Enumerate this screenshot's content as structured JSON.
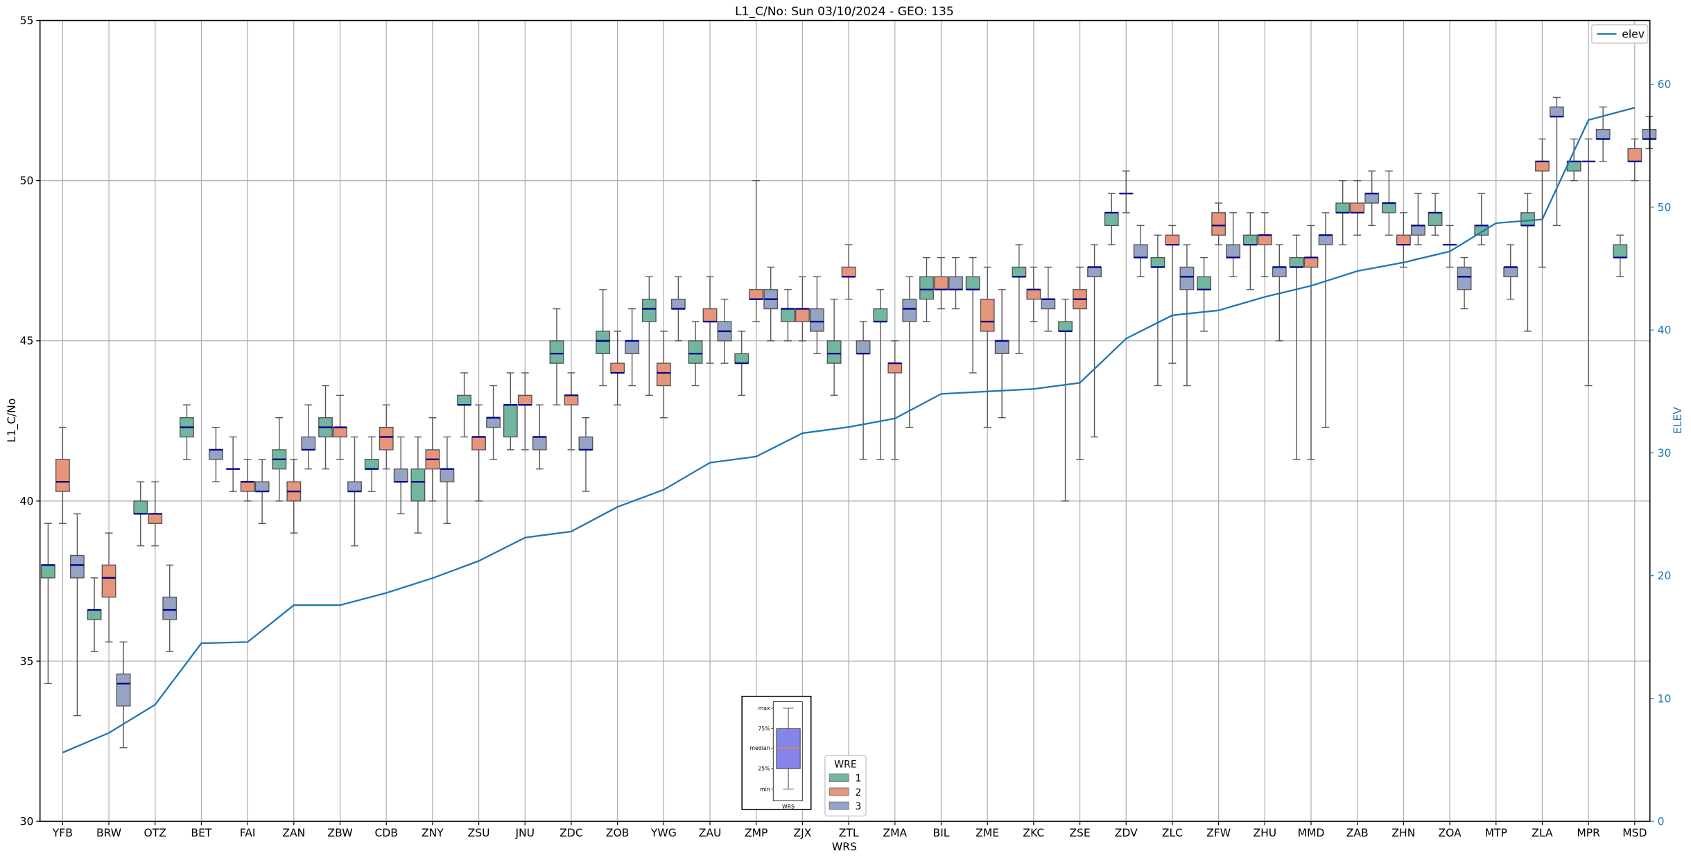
{
  "chart_data": {
    "type": "box",
    "title": "L1_C/No: Sun 03/10/2024 - GEO: 135",
    "xlabel": "WRS",
    "ylabel": "L1_C/No",
    "y2label": "ELEV",
    "ylim": [
      30,
      55
    ],
    "y2lim": [
      0,
      65.2
    ],
    "yticks": [
      "30",
      "35",
      "40",
      "45",
      "50",
      "55"
    ],
    "y2ticks": [
      "0",
      "10",
      "20",
      "30",
      "40",
      "50",
      "60"
    ],
    "grid": true,
    "categories": [
      "YFB",
      "BRW",
      "OTZ",
      "BET",
      "FAI",
      "ZAN",
      "ZBW",
      "CDB",
      "ZNY",
      "ZSU",
      "JNU",
      "ZDC",
      "ZOB",
      "YWG",
      "ZAU",
      "ZMP",
      "ZJX",
      "ZTL",
      "ZMA",
      "BIL",
      "ZME",
      "ZKC",
      "ZSE",
      "ZDV",
      "ZLC",
      "ZFW",
      "ZHU",
      "MMD",
      "ZAB",
      "ZHN",
      "ZOA",
      "MTP",
      "ZLA",
      "MPR",
      "MSD"
    ],
    "box_legend": {
      "title": "WRE",
      "entries": [
        "1",
        "2",
        "3"
      ],
      "placement": "bottom-center"
    },
    "box_colors": [
      "#72b5a0",
      "#e6957a",
      "#95a3c5"
    ],
    "median_color": "#00008b",
    "box_series_format": "[min, q1, median, q3, max] per WRE 1/2/3; null = absent",
    "boxes": [
      [
        [
          34.3,
          37.6,
          38.0,
          38.0,
          39.3
        ],
        [
          39.3,
          40.3,
          40.6,
          41.3,
          42.3
        ],
        [
          33.3,
          37.6,
          38.0,
          38.3,
          39.6
        ]
      ],
      [
        [
          35.3,
          36.3,
          36.6,
          36.6,
          37.6
        ],
        [
          35.6,
          37.0,
          37.6,
          38.0,
          39.0
        ],
        [
          32.3,
          33.6,
          34.3,
          34.6,
          35.6
        ]
      ],
      [
        [
          38.6,
          39.6,
          39.6,
          40.0,
          40.6
        ],
        [
          38.6,
          39.3,
          39.6,
          39.6,
          40.6
        ],
        [
          35.3,
          36.3,
          36.6,
          37.0,
          38.0
        ]
      ],
      [
        [
          41.3,
          42.0,
          42.3,
          42.6,
          43.0
        ],
        null,
        [
          40.6,
          41.3,
          41.6,
          41.6,
          42.3
        ]
      ],
      [
        [
          40.3,
          41.0,
          41.0,
          41.0,
          42.0
        ],
        [
          40.0,
          40.3,
          40.6,
          40.6,
          41.3
        ],
        [
          39.3,
          40.3,
          40.3,
          40.6,
          41.3
        ]
      ],
      [
        [
          40.0,
          41.0,
          41.3,
          41.6,
          42.6
        ],
        [
          39.0,
          40.0,
          40.3,
          40.6,
          41.3
        ],
        [
          41.0,
          41.6,
          41.6,
          42.0,
          43.0
        ]
      ],
      [
        [
          41.0,
          42.0,
          42.3,
          42.6,
          43.6
        ],
        [
          41.3,
          42.0,
          42.3,
          42.3,
          43.3
        ],
        [
          38.6,
          40.3,
          40.3,
          40.6,
          42.0
        ]
      ],
      [
        [
          40.3,
          41.0,
          41.0,
          41.3,
          42.0
        ],
        [
          41.0,
          41.6,
          42.0,
          42.3,
          43.0
        ],
        [
          39.6,
          40.6,
          40.6,
          41.0,
          42.0
        ]
      ],
      [
        [
          39.0,
          40.0,
          40.6,
          41.0,
          42.0
        ],
        [
          40.0,
          41.0,
          41.3,
          41.6,
          42.6
        ],
        [
          39.3,
          40.6,
          41.0,
          41.0,
          42.0
        ]
      ],
      [
        [
          42.0,
          43.0,
          43.0,
          43.3,
          44.0
        ],
        [
          40.0,
          41.6,
          42.0,
          42.0,
          43.0
        ],
        [
          41.3,
          42.3,
          42.6,
          42.6,
          43.6
        ]
      ],
      [
        [
          41.6,
          42.0,
          43.0,
          43.0,
          44.0
        ],
        [
          41.6,
          43.0,
          43.0,
          43.3,
          44.0
        ],
        [
          41.0,
          41.6,
          42.0,
          42.0,
          43.0
        ]
      ],
      [
        [
          43.0,
          44.3,
          44.6,
          45.0,
          46.0
        ],
        [
          41.6,
          43.0,
          43.3,
          43.3,
          44.0
        ],
        [
          40.3,
          41.6,
          41.6,
          42.0,
          42.6
        ]
      ],
      [
        [
          43.6,
          44.6,
          45.0,
          45.3,
          46.6
        ],
        [
          43.0,
          44.0,
          44.0,
          44.3,
          45.3
        ],
        [
          43.6,
          44.6,
          45.0,
          45.0,
          46.0
        ]
      ],
      [
        [
          43.3,
          45.6,
          46.0,
          46.3,
          47.0
        ],
        [
          42.6,
          43.6,
          44.0,
          44.3,
          45.3
        ],
        [
          45.0,
          46.0,
          46.0,
          46.3,
          47.0
        ]
      ],
      [
        [
          43.6,
          44.3,
          44.6,
          45.0,
          45.6
        ],
        [
          44.3,
          45.6,
          45.6,
          46.0,
          47.0
        ],
        [
          44.3,
          45.0,
          45.3,
          45.6,
          46.3
        ]
      ],
      [
        [
          43.3,
          44.3,
          44.3,
          44.6,
          45.3
        ],
        [
          45.6,
          46.3,
          46.3,
          46.6,
          50.0
        ],
        [
          45.0,
          46.0,
          46.3,
          46.6,
          47.3
        ]
      ],
      [
        [
          45.0,
          45.6,
          46.0,
          46.0,
          46.6
        ],
        [
          45.0,
          45.6,
          46.0,
          46.0,
          47.0
        ],
        [
          44.6,
          45.3,
          45.6,
          46.0,
          47.0
        ]
      ],
      [
        [
          43.3,
          44.3,
          44.6,
          45.0,
          46.3
        ],
        [
          46.3,
          47.0,
          47.0,
          47.3,
          48.0
        ],
        [
          41.3,
          44.6,
          44.6,
          45.0,
          45.6
        ]
      ],
      [
        [
          41.3,
          45.6,
          45.6,
          46.0,
          46.6
        ],
        [
          41.3,
          44.0,
          44.3,
          44.3,
          45.0
        ],
        [
          42.3,
          45.6,
          46.0,
          46.3,
          47.0
        ]
      ],
      [
        [
          45.6,
          46.3,
          46.6,
          47.0,
          47.6
        ],
        [
          46.0,
          46.6,
          46.6,
          47.0,
          47.6
        ],
        [
          46.0,
          46.6,
          46.6,
          47.0,
          47.6
        ]
      ],
      [
        [
          44.0,
          46.6,
          46.6,
          47.0,
          47.6
        ],
        [
          42.3,
          45.3,
          45.6,
          46.3,
          47.3
        ],
        [
          42.6,
          44.6,
          45.0,
          45.0,
          46.6
        ]
      ],
      [
        [
          44.6,
          47.0,
          47.0,
          47.3,
          48.0
        ],
        [
          45.6,
          46.3,
          46.6,
          46.6,
          47.3
        ],
        [
          45.3,
          46.0,
          46.3,
          46.3,
          47.3
        ]
      ],
      [
        [
          40.0,
          45.3,
          45.3,
          45.6,
          46.3
        ],
        [
          41.3,
          46.0,
          46.3,
          46.6,
          47.3
        ],
        [
          42.0,
          47.0,
          47.3,
          47.3,
          48.0
        ]
      ],
      [
        [
          48.0,
          48.6,
          49.0,
          49.0,
          49.6
        ],
        [
          49.0,
          49.6,
          49.6,
          49.6,
          50.3
        ],
        [
          47.0,
          47.6,
          47.6,
          48.0,
          48.6
        ]
      ],
      [
        [
          43.6,
          47.3,
          47.3,
          47.6,
          48.3
        ],
        [
          44.3,
          48.0,
          48.0,
          48.3,
          48.6
        ],
        [
          43.6,
          46.6,
          47.0,
          47.3,
          48.0
        ]
      ],
      [
        [
          45.3,
          46.6,
          46.6,
          47.0,
          47.6
        ],
        [
          48.0,
          48.3,
          48.6,
          49.0,
          49.3
        ],
        [
          47.0,
          47.6,
          47.6,
          48.0,
          49.0
        ]
      ],
      [
        [
          46.6,
          48.0,
          48.0,
          48.3,
          49.0
        ],
        [
          47.0,
          48.0,
          48.3,
          48.3,
          49.0
        ],
        [
          45.0,
          47.0,
          47.3,
          47.3,
          48.0
        ]
      ],
      [
        [
          41.3,
          47.3,
          47.3,
          47.6,
          48.3
        ],
        [
          41.3,
          47.3,
          47.6,
          47.6,
          48.6
        ],
        [
          42.3,
          48.0,
          48.3,
          48.3,
          49.0
        ]
      ],
      [
        [
          48.0,
          49.0,
          49.0,
          49.3,
          50.0
        ],
        [
          48.3,
          49.0,
          49.0,
          49.3,
          50.0
        ],
        [
          48.6,
          49.3,
          49.6,
          49.6,
          50.3
        ]
      ],
      [
        [
          48.3,
          49.0,
          49.3,
          49.3,
          50.3
        ],
        [
          47.3,
          48.0,
          48.0,
          48.3,
          49.0
        ],
        [
          48.0,
          48.3,
          48.6,
          48.6,
          49.6
        ]
      ],
      [
        [
          48.3,
          48.6,
          49.0,
          49.0,
          49.6
        ],
        [
          47.3,
          48.0,
          48.0,
          48.0,
          48.6
        ],
        [
          46.0,
          46.6,
          47.0,
          47.3,
          47.6
        ]
      ],
      [
        [
          48.0,
          48.3,
          48.6,
          48.6,
          49.6
        ],
        null,
        [
          46.3,
          47.0,
          47.3,
          47.3,
          48.0
        ]
      ],
      [
        [
          45.3,
          48.6,
          48.6,
          49.0,
          49.6
        ],
        [
          47.3,
          50.3,
          50.6,
          50.6,
          51.3
        ],
        [
          48.6,
          52.0,
          52.0,
          52.3,
          52.6
        ]
      ],
      [
        [
          50.0,
          50.3,
          50.6,
          50.6,
          51.3
        ],
        [
          43.6,
          50.6,
          50.6,
          50.6,
          51.3
        ],
        [
          50.6,
          51.3,
          51.3,
          51.6,
          52.3
        ]
      ],
      [
        [
          47.0,
          47.6,
          47.6,
          48.0,
          48.3
        ],
        [
          50.0,
          50.6,
          50.6,
          51.0,
          51.3
        ],
        [
          51.0,
          51.3,
          51.3,
          51.6,
          52.0
        ]
      ]
    ],
    "line_series": {
      "name": "elev",
      "axis": "right",
      "color": "#1f77b4",
      "values": [
        5.6,
        7.2,
        9.5,
        14.5,
        14.6,
        17.6,
        17.6,
        18.6,
        19.8,
        21.2,
        23.1,
        23.6,
        25.6,
        27.0,
        29.2,
        29.7,
        31.6,
        32.1,
        32.8,
        34.8,
        35.0,
        35.2,
        35.7,
        39.3,
        41.2,
        41.6,
        42.7,
        43.6,
        44.8,
        45.5,
        46.4,
        48.7,
        49.0,
        57.1,
        58.1
      ]
    },
    "line_legend": {
      "placement": "top-right"
    },
    "inset_legend": {
      "labels": [
        "max",
        "75%",
        "median",
        "25%",
        "min"
      ],
      "xlabel": "WRS",
      "box_color": "#8484ea",
      "median_color": "#ff8c00"
    }
  }
}
